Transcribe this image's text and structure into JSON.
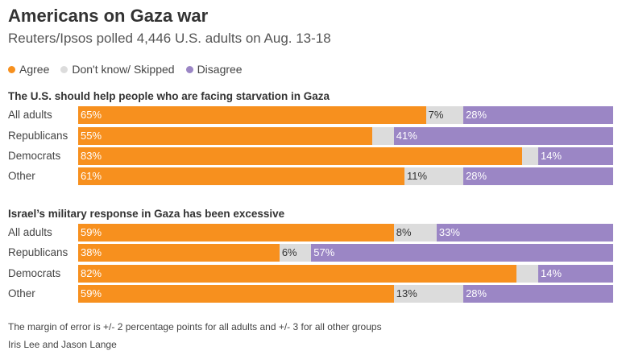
{
  "header": {
    "title": "Americans on Gaza war",
    "subtitle": "Reuters/Ipsos polled 4,446 U.S. adults on Aug. 13-18"
  },
  "legend": [
    {
      "label": "Agree",
      "color": "#f7901e"
    },
    {
      "label": "Don't know/ Skipped",
      "color": "#dcdcdc"
    },
    {
      "label": "Disagree",
      "color": "#9b86c5"
    }
  ],
  "colors": {
    "agree": "#f7901e",
    "dont_know": "#dcdcdc",
    "disagree": "#9b86c5"
  },
  "chart_data": [
    {
      "type": "bar",
      "orientation": "horizontal-stacked",
      "title": "The U.S. should help people who are facing starvation in Gaza",
      "categories": [
        "All adults",
        "Republicans",
        "Democrats",
        "Other"
      ],
      "series": [
        {
          "name": "Agree",
          "values": [
            65,
            55,
            83,
            61
          ],
          "labels": [
            "65%",
            "55%",
            "83%",
            "61%"
          ]
        },
        {
          "name": "Don't know/ Skipped",
          "values": [
            7,
            4,
            3,
            11
          ],
          "labels": [
            "7%",
            "",
            "",
            "11%"
          ]
        },
        {
          "name": "Disagree",
          "values": [
            28,
            41,
            14,
            28
          ],
          "labels": [
            "28%",
            "41%",
            "14%",
            "28%"
          ]
        }
      ],
      "xlim": [
        0,
        100
      ]
    },
    {
      "type": "bar",
      "orientation": "horizontal-stacked",
      "title": "Israel’s military response in Gaza has been excessive",
      "categories": [
        "All adults",
        "Republicans",
        "Democrats",
        "Other"
      ],
      "series": [
        {
          "name": "Agree",
          "values": [
            59,
            38,
            82,
            59
          ],
          "labels": [
            "59%",
            "38%",
            "82%",
            "59%"
          ]
        },
        {
          "name": "Don't know/ Skipped",
          "values": [
            8,
            6,
            4,
            13
          ],
          "labels": [
            "8%",
            "6%",
            "",
            "13%"
          ]
        },
        {
          "name": "Disagree",
          "values": [
            33,
            57,
            14,
            28
          ],
          "labels": [
            "33%",
            "57%",
            "14%",
            "28%"
          ]
        }
      ],
      "xlim": [
        0,
        100
      ]
    }
  ],
  "footer": {
    "note": "The margin of error is +/- 2 percentage points for all adults and +/- 3 for all other groups",
    "credit": "Iris Lee and Jason Lange"
  }
}
